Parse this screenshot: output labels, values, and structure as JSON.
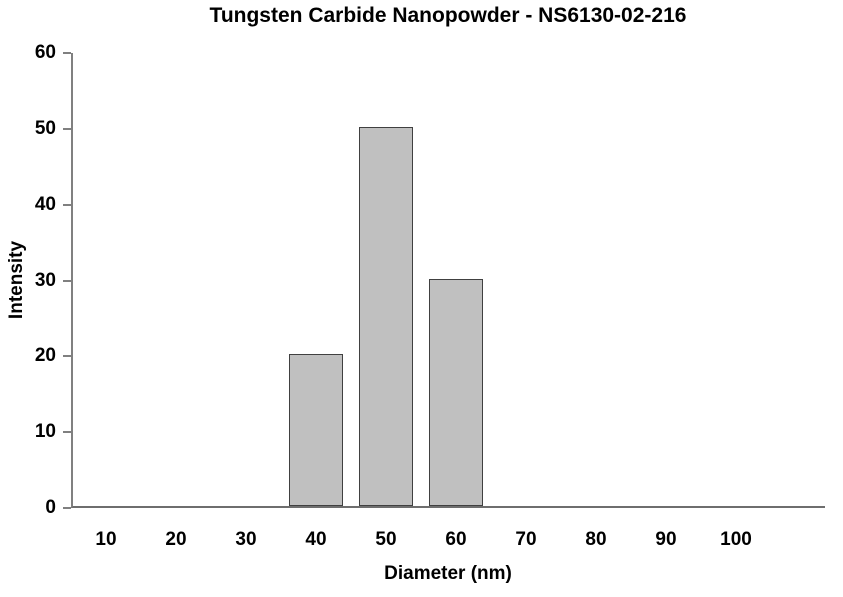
{
  "chart_data": {
    "type": "bar",
    "title": "Tungsten Carbide Nanopowder - NS6130-02-216",
    "xlabel": "Diameter (nm)",
    "ylabel": "Intensity",
    "categories": [
      10,
      20,
      30,
      40,
      50,
      60,
      70,
      80,
      90,
      100
    ],
    "values": [
      0,
      0,
      0,
      20,
      50,
      30,
      0,
      0,
      0,
      0
    ],
    "ylim": [
      0,
      60
    ],
    "ytick_step": 10,
    "yticks": [
      0,
      10,
      20,
      30,
      40,
      50,
      60
    ],
    "grid": false,
    "legend_position": "none",
    "colors": {
      "bar_fill": "#c0c0c0",
      "bar_border": "#404040",
      "axis_line": "#808080",
      "text": "#000000",
      "background": "#ffffff"
    }
  }
}
